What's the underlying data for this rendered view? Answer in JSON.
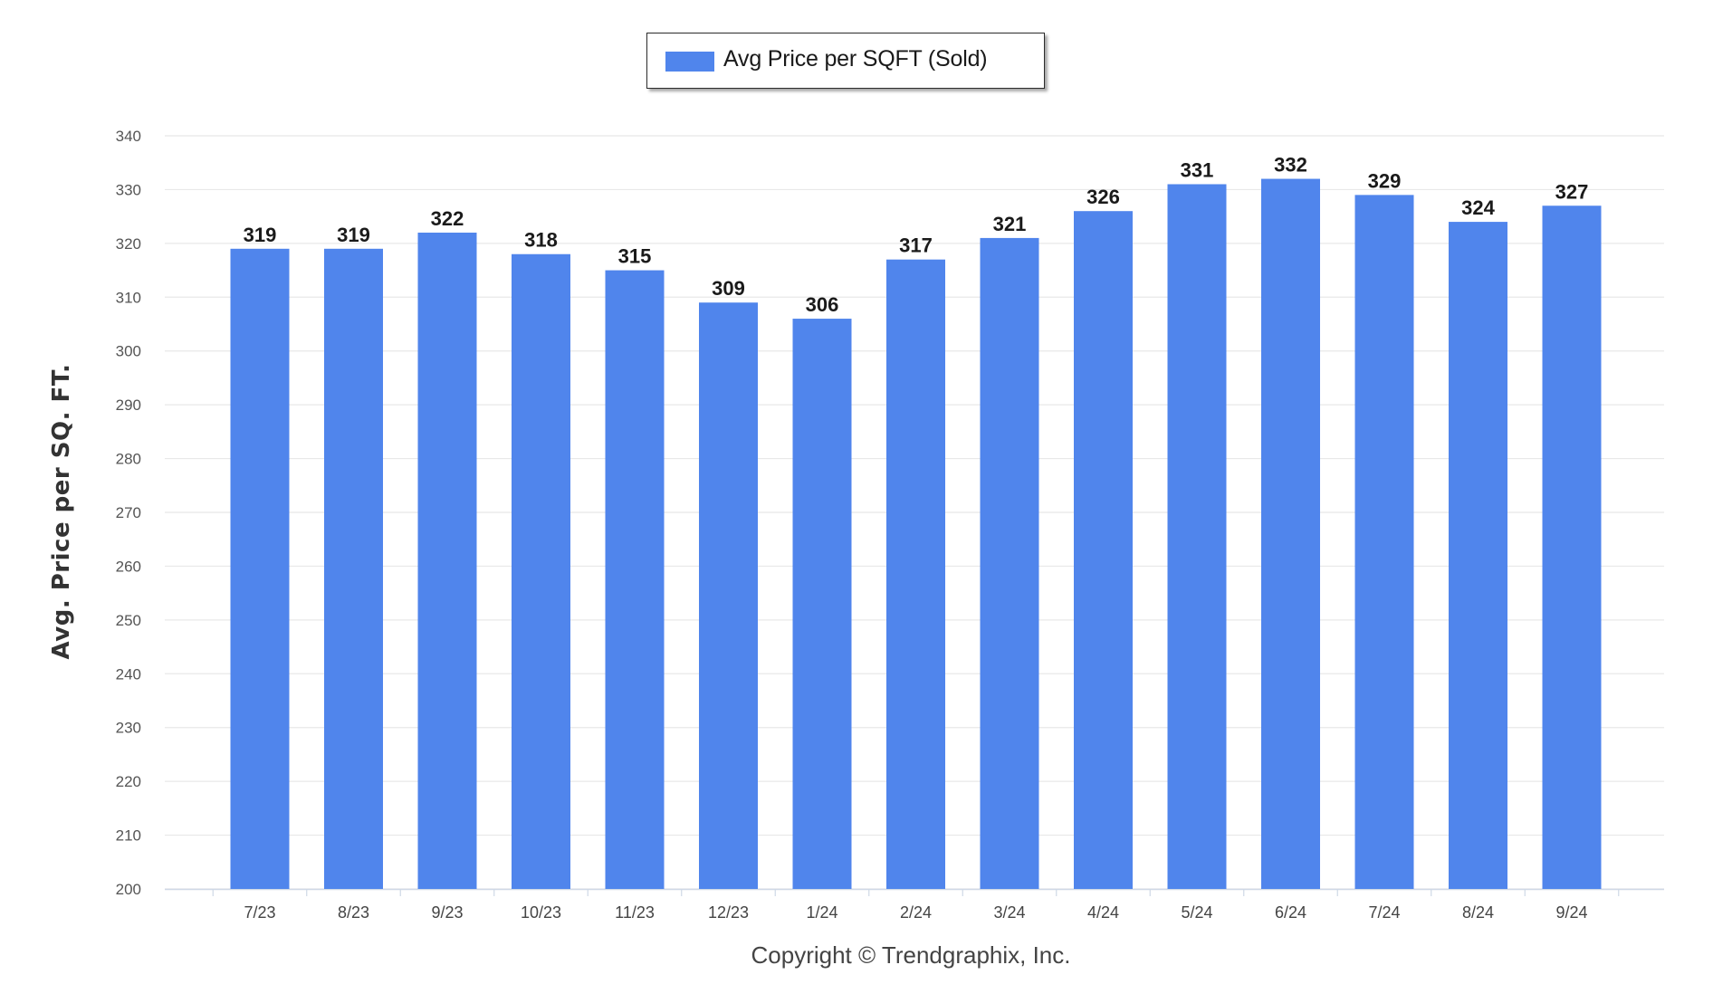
{
  "legend": {
    "label": "Avg Price per SQFT (Sold)",
    "color": "#5085ec"
  },
  "footer": {
    "copyright": "Copyright © Trendgraphix, Inc."
  },
  "chart_data": {
    "type": "bar",
    "categories": [
      "7/23",
      "8/23",
      "9/23",
      "10/23",
      "11/23",
      "12/23",
      "1/24",
      "2/24",
      "3/24",
      "4/24",
      "5/24",
      "6/24",
      "7/24",
      "8/24",
      "9/24"
    ],
    "series": [
      {
        "name": "Avg Price per SQFT (Sold)",
        "values": [
          319,
          319,
          322,
          318,
          315,
          309,
          306,
          317,
          321,
          326,
          331,
          332,
          329,
          324,
          327
        ],
        "color": "#5085ec"
      }
    ],
    "ylabel": "Avg. Price per SQ. FT.",
    "xlabel": "",
    "ylim": [
      200,
      340
    ],
    "yticks": [
      200,
      210,
      220,
      230,
      240,
      250,
      260,
      270,
      280,
      290,
      300,
      310,
      320,
      330,
      340
    ],
    "data_labels": true,
    "grid": true,
    "legend_position": "top-center"
  }
}
